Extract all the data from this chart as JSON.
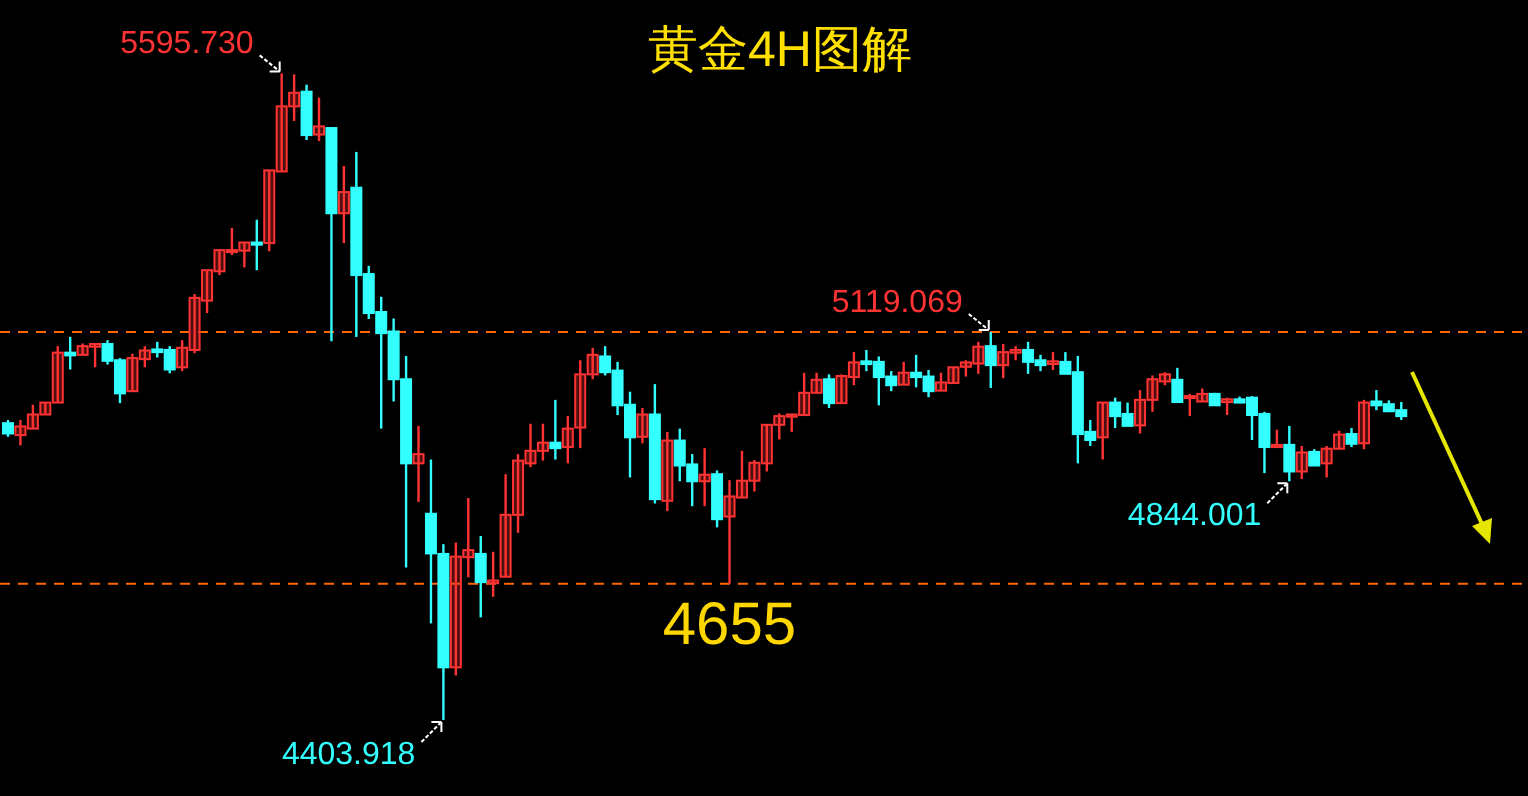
{
  "chart_data": {
    "type": "candlestick",
    "title": "黄金4H图解",
    "categories": [
      null,
      null,
      null,
      null,
      null,
      null,
      null,
      null,
      null,
      null,
      null,
      null,
      null,
      null,
      null,
      null,
      null,
      null,
      null,
      null,
      null,
      null,
      null,
      null,
      null,
      null,
      null,
      null,
      null,
      null,
      null,
      null,
      null,
      null,
      null,
      null,
      null,
      null,
      null,
      null,
      null,
      null,
      null,
      null,
      null,
      null,
      null,
      null,
      null,
      null,
      null,
      null,
      null,
      null,
      null,
      null,
      null,
      null,
      null,
      null,
      null,
      null,
      null,
      null,
      null,
      null,
      null,
      null,
      null,
      null,
      null,
      null,
      null,
      null,
      null,
      null,
      null,
      null,
      null,
      null,
      null,
      null,
      null,
      null,
      null,
      null,
      null,
      null,
      null,
      null,
      null,
      null,
      null,
      null,
      null,
      null,
      null,
      null,
      null,
      null,
      null,
      null,
      null,
      null,
      null,
      null,
      null,
      null,
      null,
      null,
      null,
      null,
      null
    ],
    "ohlc": [
      [
        4951,
        4957,
        4926,
        4932
      ],
      [
        4929,
        4957,
        4910,
        4945
      ],
      [
        4941,
        4985,
        4941,
        4967
      ],
      [
        4967,
        4989,
        4967,
        4989
      ],
      [
        4989,
        5093,
        4989,
        5081
      ],
      [
        5081,
        5110,
        5050,
        5076
      ],
      [
        5077,
        5098,
        5077,
        5093
      ],
      [
        5092,
        5097,
        5054,
        5097
      ],
      [
        5097,
        5104,
        5059,
        5066
      ],
      [
        5067,
        5071,
        4988,
        5006
      ],
      [
        5010,
        5079,
        5010,
        5071
      ],
      [
        5069,
        5093,
        5054,
        5085
      ],
      [
        5087,
        5101,
        5072,
        5082
      ],
      [
        5086,
        5093,
        5043,
        5050
      ],
      [
        5054,
        5104,
        5047,
        5090
      ],
      [
        5086,
        5189,
        5080,
        5182
      ],
      [
        5177,
        5233,
        5154,
        5233
      ],
      [
        5231,
        5270,
        5224,
        5270
      ],
      [
        5267,
        5311,
        5261,
        5270
      ],
      [
        5269,
        5284,
        5238,
        5284
      ],
      [
        5284,
        5326,
        5233,
        5280
      ],
      [
        5283,
        5417,
        5268,
        5417
      ],
      [
        5415,
        5595.73,
        5415,
        5535
      ],
      [
        5535,
        5594,
        5508,
        5560
      ],
      [
        5562,
        5575,
        5473,
        5482
      ],
      [
        5483,
        5551,
        5471,
        5498
      ],
      [
        5495,
        5495,
        5102,
        5338
      ],
      [
        5338,
        5425,
        5283,
        5377
      ],
      [
        5385,
        5451,
        5110,
        5224
      ],
      [
        5226,
        5241,
        5143,
        5154
      ],
      [
        5156,
        5184,
        4941,
        5117
      ],
      [
        5120,
        5144,
        4991,
        5032
      ],
      [
        5032,
        5075,
        4685,
        4877
      ],
      [
        4877,
        4946,
        4806,
        4894
      ],
      [
        4784,
        4884,
        4582,
        4711
      ],
      [
        4710,
        4728,
        4403.918,
        4501
      ],
      [
        4501,
        4731,
        4486,
        4705
      ],
      [
        4704,
        4813,
        4667,
        4717
      ],
      [
        4710,
        4743,
        4593,
        4658
      ],
      [
        4656,
        4714,
        4631,
        4661
      ],
      [
        4668,
        4857,
        4668,
        4782
      ],
      [
        4782,
        4894,
        4749,
        4882
      ],
      [
        4877,
        4950,
        4870,
        4900
      ],
      [
        4900,
        4950,
        4882,
        4915
      ],
      [
        4915,
        4994,
        4884,
        4905
      ],
      [
        4907,
        4964,
        4877,
        4941
      ],
      [
        4943,
        5067,
        4905,
        5041
      ],
      [
        5041,
        5090,
        5032,
        5077
      ],
      [
        5074,
        5093,
        5039,
        5045
      ],
      [
        5048,
        5064,
        4966,
        4984
      ],
      [
        4985,
        5009,
        4851,
        4925
      ],
      [
        4926,
        4979,
        4914,
        4967
      ],
      [
        4967,
        5023,
        4803,
        4811
      ],
      [
        4808,
        4935,
        4789,
        4919
      ],
      [
        4919,
        4941,
        4844,
        4873
      ],
      [
        4875,
        4894,
        4798,
        4844
      ],
      [
        4844,
        4905,
        4798,
        4856
      ],
      [
        4857,
        4864,
        4759,
        4774
      ],
      [
        4779,
        4846,
        4655,
        4816
      ],
      [
        4814,
        4900,
        4814,
        4845
      ],
      [
        4845,
        4883,
        4825,
        4878
      ],
      [
        4877,
        4948,
        4862,
        4948
      ],
      [
        4948,
        4969,
        4921,
        4964
      ],
      [
        4963,
        4967,
        4935,
        4967
      ],
      [
        4966,
        5044,
        4966,
        5007
      ],
      [
        5007,
        5044,
        5007,
        5031
      ],
      [
        5032,
        5041,
        4979,
        4988
      ],
      [
        4988,
        5041,
        4988,
        5038
      ],
      [
        5036,
        5082,
        5021,
        5063
      ],
      [
        5065,
        5086,
        5047,
        5060
      ],
      [
        5064,
        5074,
        4984,
        5036
      ],
      [
        5037,
        5047,
        5010,
        5021
      ],
      [
        5022,
        5064,
        5022,
        5044
      ],
      [
        5044,
        5077,
        5017,
        5036
      ],
      [
        5037,
        5049,
        4999,
        5010
      ],
      [
        5011,
        5044,
        5011,
        5026
      ],
      [
        5025,
        5054,
        5025,
        5054
      ],
      [
        5055,
        5067,
        5037,
        5063
      ],
      [
        5061,
        5101,
        5042,
        5092
      ],
      [
        5093,
        5119.069,
        5016,
        5058
      ],
      [
        5058,
        5097,
        5034,
        5082
      ],
      [
        5081,
        5093,
        5067,
        5086
      ],
      [
        5086,
        5101,
        5042,
        5064
      ],
      [
        5067,
        5077,
        5047,
        5058
      ],
      [
        5060,
        5082,
        5049,
        5065
      ],
      [
        5064,
        5082,
        5042,
        5042
      ],
      [
        5045,
        5075,
        4877,
        4931
      ],
      [
        4935,
        4957,
        4909,
        4920
      ],
      [
        4925,
        4989,
        4884,
        4989
      ],
      [
        4989,
        4998,
        4942,
        4964
      ],
      [
        4968,
        4989,
        4946,
        4946
      ],
      [
        4947,
        5012,
        4932,
        4994
      ],
      [
        4994,
        5039,
        4972,
        5032
      ],
      [
        5028,
        5045,
        5021,
        5041
      ],
      [
        5031,
        5053,
        4990,
        4990
      ],
      [
        4998,
        5005,
        4964,
        5001
      ],
      [
        4991,
        5015,
        4991,
        5005
      ],
      [
        5005,
        5007,
        4984,
        4984
      ],
      [
        4990,
        4998,
        4966,
        4995
      ],
      [
        4995,
        5000,
        4988,
        4989
      ],
      [
        4998,
        5001,
        4920,
        4966
      ],
      [
        4968,
        4972,
        4859,
        4907
      ],
      [
        4907,
        4939,
        4907,
        4911
      ],
      [
        4911,
        4946,
        4844.001,
        4862
      ],
      [
        4862,
        4909,
        4848,
        4897
      ],
      [
        4898,
        4903,
        4873,
        4873
      ],
      [
        4877,
        4909,
        4851,
        4904
      ],
      [
        4904,
        4937,
        4903,
        4930
      ],
      [
        4931,
        4942,
        4907,
        4913
      ],
      [
        4914,
        4994,
        4903,
        4989
      ],
      [
        4991,
        5012,
        4975,
        4984
      ],
      [
        4986,
        4993,
        4973,
        4973
      ],
      [
        4975,
        4990,
        4957,
        4964
      ]
    ],
    "colors": [
      "#33ffff",
      "#ff3333",
      "#ff3333",
      "#ff3333",
      "#ff3333",
      "#33ffff",
      "#ff3333",
      "#ff3333",
      "#33ffff",
      "#33ffff",
      "#ff3333",
      "#ff3333",
      "#33ffff",
      "#33ffff",
      "#ff3333",
      "#ff3333",
      "#ff3333",
      "#ff3333",
      "#ff3333",
      "#ff3333",
      "#33ffff",
      "#ff3333",
      "#ff3333",
      "#ff3333",
      "#33ffff",
      "#ff3333",
      "#33ffff",
      "#ff3333",
      "#33ffff",
      "#33ffff",
      "#33ffff",
      "#33ffff",
      "#33ffff",
      "#ff3333",
      "#33ffff",
      "#33ffff",
      "#ff3333",
      "#ff3333",
      "#33ffff",
      "#ff3333",
      "#ff3333",
      "#ff3333",
      "#ff3333",
      "#ff3333",
      "#33ffff",
      "#ff3333",
      "#ff3333",
      "#ff3333",
      "#33ffff",
      "#33ffff",
      "#33ffff",
      "#ff3333",
      "#33ffff",
      "#ff3333",
      "#33ffff",
      "#33ffff",
      "#ff3333",
      "#33ffff",
      "#ff3333",
      "#ff3333",
      "#ff3333",
      "#ff3333",
      "#ff3333",
      "#ff3333",
      "#ff3333",
      "#ff3333",
      "#33ffff",
      "#ff3333",
      "#ff3333",
      "#33ffff",
      "#33ffff",
      "#33ffff",
      "#ff3333",
      "#33ffff",
      "#33ffff",
      "#ff3333",
      "#ff3333",
      "#ff3333",
      "#ff3333",
      "#33ffff",
      "#ff3333",
      "#ff3333",
      "#33ffff",
      "#33ffff",
      "#ff3333",
      "#33ffff",
      "#33ffff",
      "#33ffff",
      "#ff3333",
      "#33ffff",
      "#33ffff",
      "#ff3333",
      "#ff3333",
      "#ff3333",
      "#33ffff",
      "#ff3333",
      "#ff3333",
      "#33ffff",
      "#ff3333",
      "#33ffff",
      "#33ffff",
      "#33ffff",
      "#ff3333",
      "#33ffff",
      "#ff3333",
      "#33ffff",
      "#ff3333",
      "#ff3333",
      "#33ffff",
      "#ff3333",
      "#33ffff",
      "#33ffff",
      "#33ffff"
    ],
    "ref_lines": [
      {
        "axis": "y",
        "value": 5119.069,
        "color": "#ff6600",
        "line_style": "dashed"
      },
      {
        "axis": "y",
        "value": 4655,
        "label": "4655",
        "color": "#ff6600",
        "line_style": "dashed"
      }
    ],
    "annotations": [
      "5595.730",
      "5119.069",
      "4844.001",
      "4403.918"
    ]
  }
}
